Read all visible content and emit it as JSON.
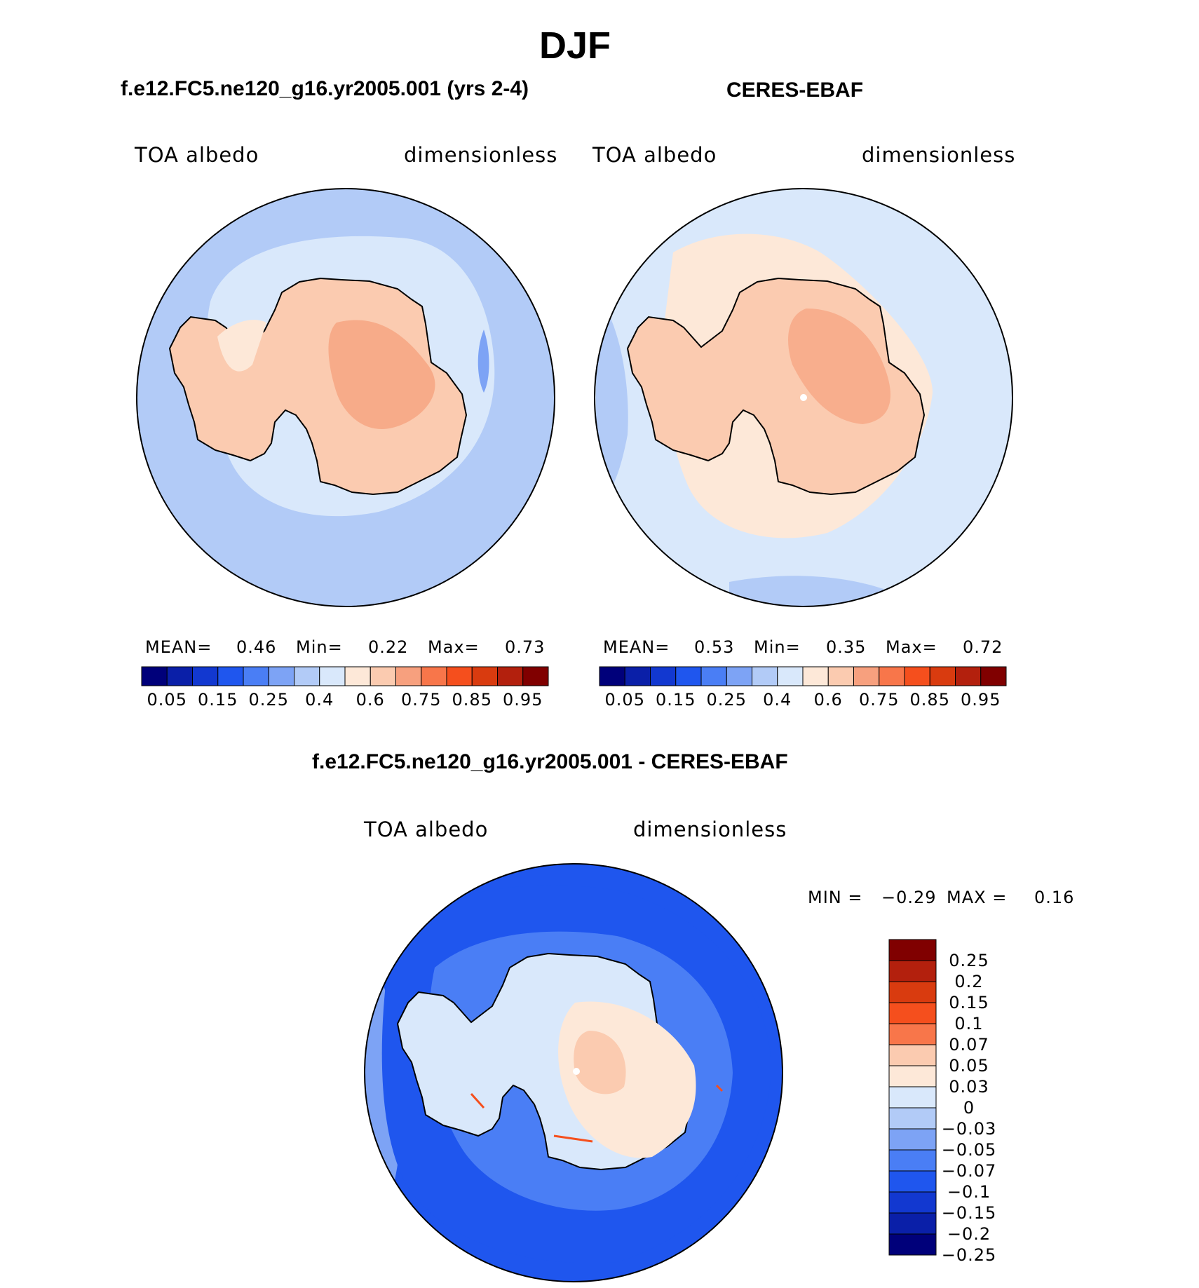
{
  "title": "DJF",
  "panels": [
    {
      "title": "f.e12.FC5.ne120_g16.yr2005.001 (yrs 2-4)",
      "left_label": "TOA albedo",
      "right_label": "dimensionless",
      "stats": {
        "mean_label": "MEAN=",
        "mean": "0.46",
        "min_label": "Min=",
        "min": "0.22",
        "max_label": "Max=",
        "max": "0.73"
      },
      "dominant_ocean_color": "#b2cbf7",
      "land_color": "#fbcbb0",
      "interior_color": "#f7ab89"
    },
    {
      "title": "CERES-EBAF",
      "left_label": "TOA albedo",
      "right_label": "dimensionless",
      "stats": {
        "mean_label": "MEAN=",
        "mean": "0.53",
        "min_label": "Min=",
        "min": "0.35",
        "max_label": "Max=",
        "max": "0.72"
      },
      "dominant_ocean_color": "#d9e8fb",
      "land_color": "#fbcbb0",
      "interior_color": "#f7ab89"
    }
  ],
  "abs_colorbar": {
    "colors": [
      "#00007a",
      "#0a1fa8",
      "#1238d0",
      "#1f56ee",
      "#4a7ef5",
      "#7da3f5",
      "#b2cbf7",
      "#d9e8fb",
      "#fde8d8",
      "#fbcbb0",
      "#f7a07e",
      "#f8764a",
      "#f54f1d",
      "#d93b0f",
      "#b3200d",
      "#800000"
    ],
    "labels": [
      "0.05",
      "0.15",
      "0.25",
      "0.4",
      "0.6",
      "0.75",
      "0.85",
      "0.95"
    ]
  },
  "diff_panel": {
    "title": "f.e12.FC5.ne120_g16.yr2005.001 - CERES-EBAF",
    "left_label": "TOA albedo",
    "right_label": "dimensionless",
    "stats": {
      "min_label": "MIN =",
      "min": "−0.29",
      "max_label": "MAX =",
      "max": "0.16"
    },
    "colorbar": {
      "colors": [
        "#800000",
        "#b3200d",
        "#d93b0f",
        "#f54f1d",
        "#f8764a",
        "#fbcbb0",
        "#fde8d8",
        "#d9e8fb",
        "#b2cbf7",
        "#7da3f5",
        "#4a7ef5",
        "#1f56ee",
        "#1238d0",
        "#0a1fa8",
        "#00007a"
      ],
      "labels": [
        "0.25",
        "0.2",
        "0.15",
        "0.1",
        "0.07",
        "0.05",
        "0.03",
        "0",
        "−0.03",
        "−0.05",
        "−0.07",
        "−0.1",
        "−0.15",
        "−0.2",
        "−0.25"
      ]
    }
  }
}
